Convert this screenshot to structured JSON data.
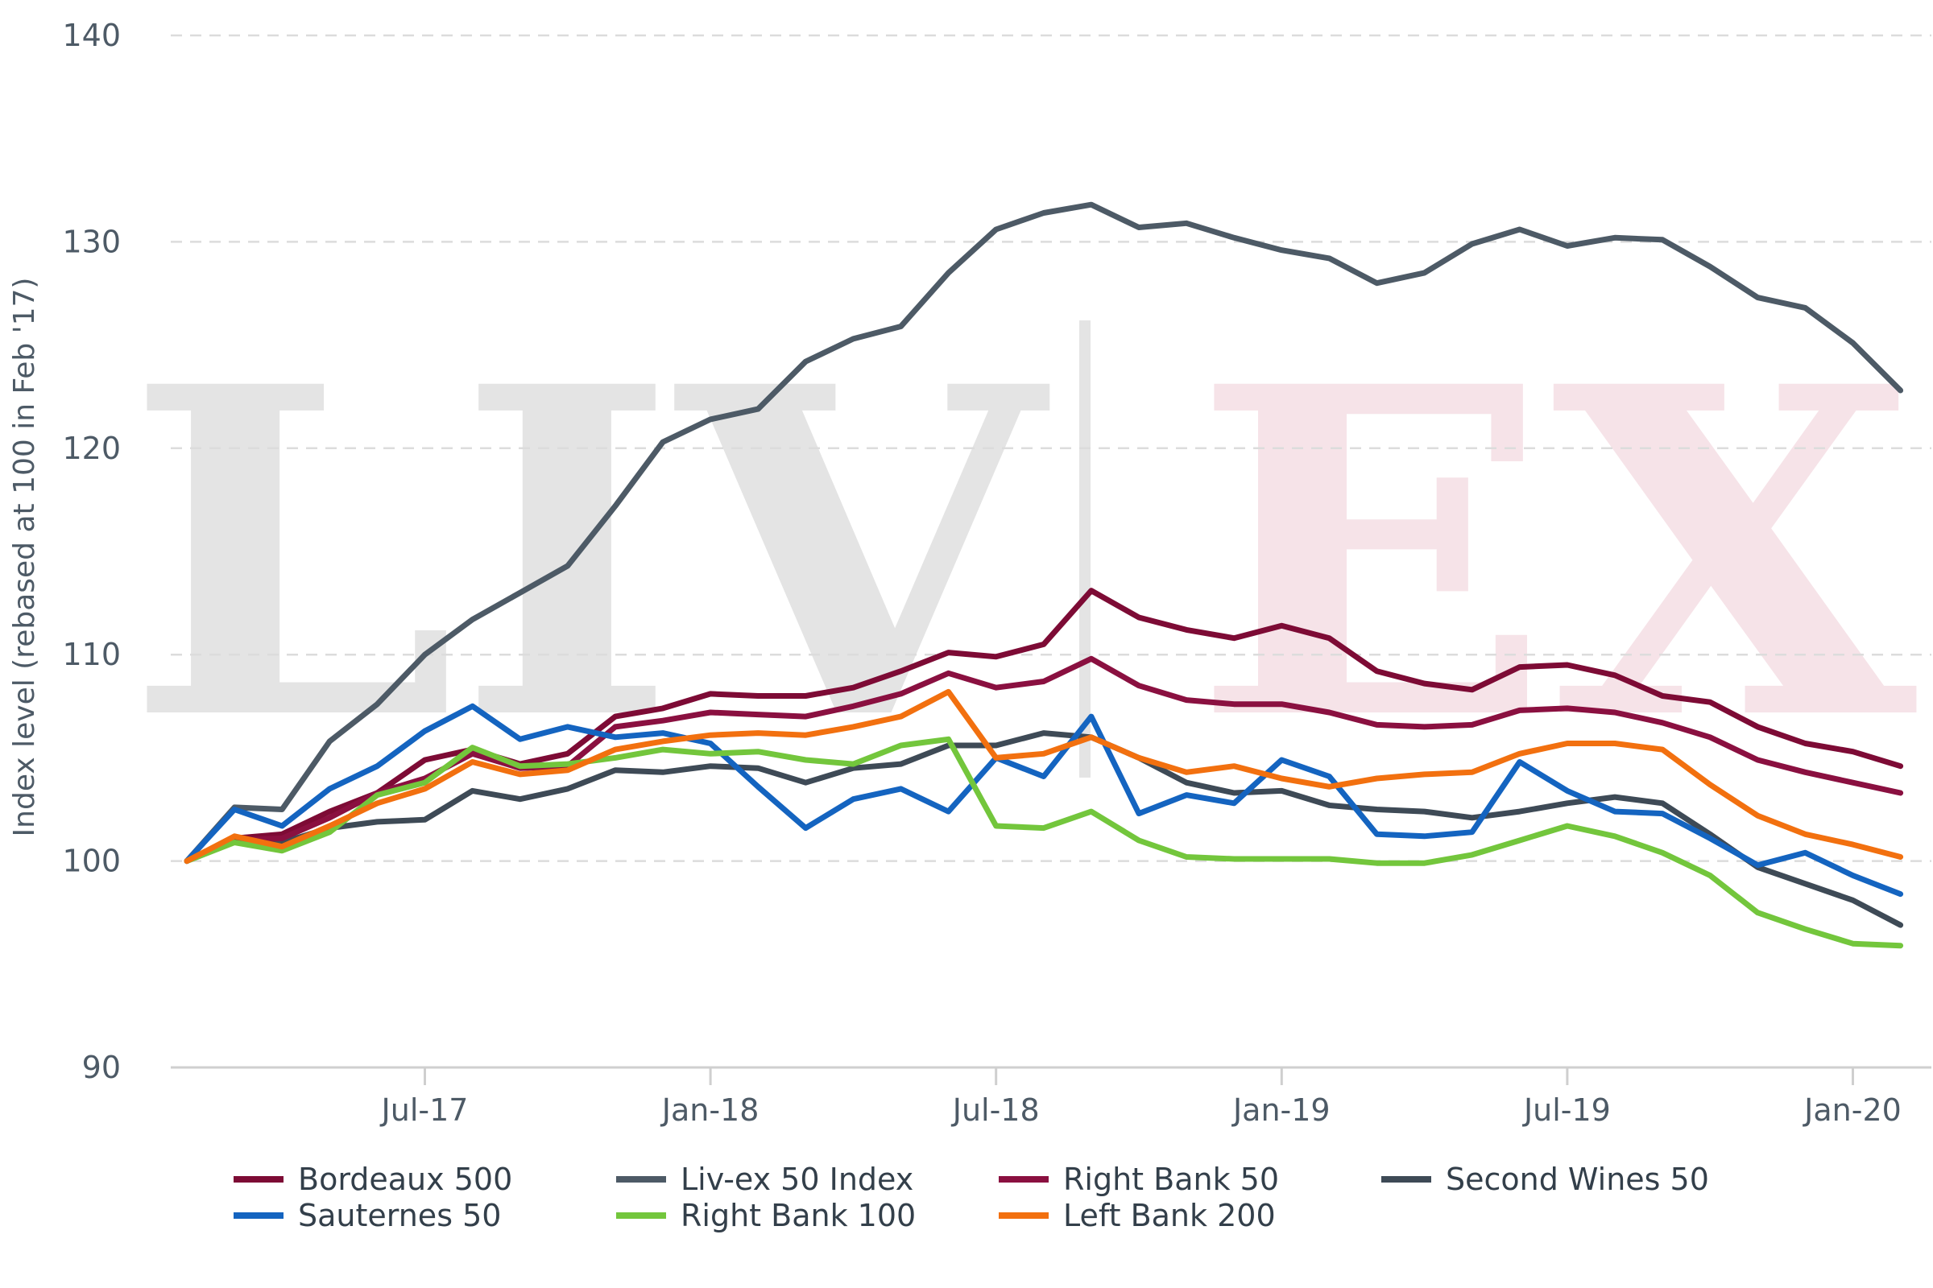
{
  "watermark": {
    "left": "LIV",
    "right": "EX"
  },
  "chart_data": {
    "type": "line",
    "title": "",
    "xlabel": "",
    "ylabel": "Index level (rebased at 100 in Feb '17)",
    "ylim": [
      90,
      140
    ],
    "yticks": [
      90,
      100,
      110,
      120,
      130,
      140
    ],
    "xlim": [
      0,
      36.9
    ],
    "xticks": [
      {
        "label": "Jul-17",
        "pos": 5
      },
      {
        "label": "Jan-18",
        "pos": 11
      },
      {
        "label": "Jul-18",
        "pos": 17
      },
      {
        "label": "Jan-19",
        "pos": 23
      },
      {
        "label": "Jul-19",
        "pos": 29
      },
      {
        "label": "Jan-20",
        "pos": 35
      }
    ],
    "x": [
      "Feb-17",
      "Mar-17",
      "Apr-17",
      "May-17",
      "Jun-17",
      "Jul-17",
      "Aug-17",
      "Sep-17",
      "Oct-17",
      "Nov-17",
      "Dec-17",
      "Jan-18",
      "Feb-18",
      "Mar-18",
      "Apr-18",
      "May-18",
      "Jun-18",
      "Jul-18",
      "Aug-18",
      "Sep-18",
      "Oct-18",
      "Nov-18",
      "Dec-18",
      "Jan-19",
      "Feb-19",
      "Mar-19",
      "Apr-19",
      "May-19",
      "Jun-19",
      "Jul-19",
      "Aug-19",
      "Sep-19",
      "Oct-19",
      "Nov-19",
      "Dec-19",
      "Jan-20",
      "Feb-20"
    ],
    "grid": "horizontal dashed",
    "legend_position": "bottom",
    "series": [
      {
        "name": "Bordeaux 500",
        "color": "#7d0b35",
        "values": [
          100,
          101.1,
          101.3,
          102.4,
          103.3,
          104.9,
          105.4,
          104.7,
          105.2,
          107.0,
          107.4,
          108.1,
          108.0,
          108.0,
          108.4,
          109.2,
          110.1,
          109.9,
          110.5,
          113.1,
          111.8,
          111.2,
          110.8,
          111.4,
          110.8,
          109.2,
          108.6,
          108.3,
          109.4,
          109.5,
          109.0,
          108.0,
          107.7,
          106.5,
          105.7,
          105.3,
          104.6
        ]
      },
      {
        "name": "Liv-ex 50 Index",
        "color": "#4d5a66",
        "values": [
          100,
          102.6,
          102.5,
          105.8,
          107.6,
          110.0,
          111.7,
          113.0,
          114.3,
          117.2,
          120.3,
          121.4,
          121.9,
          124.2,
          125.3,
          125.9,
          128.5,
          130.6,
          131.4,
          131.8,
          130.7,
          130.9,
          130.2,
          129.6,
          129.2,
          128.0,
          128.5,
          129.9,
          130.6,
          129.8,
          130.2,
          130.1,
          128.8,
          127.3,
          126.8,
          125.1,
          122.8
        ]
      },
      {
        "name": "Right Bank 50",
        "color": "#8a1040",
        "values": [
          100,
          101.0,
          101.1,
          102.1,
          103.3,
          104.0,
          105.2,
          104.5,
          104.6,
          106.5,
          106.8,
          107.2,
          107.1,
          107.0,
          107.5,
          108.1,
          109.1,
          108.4,
          108.7,
          109.8,
          108.5,
          107.8,
          107.6,
          107.6,
          107.2,
          106.6,
          106.5,
          106.6,
          107.3,
          107.4,
          107.2,
          106.7,
          106.0,
          104.9,
          104.3,
          103.8,
          103.3
        ]
      },
      {
        "name": "Second Wines 50",
        "color": "#3e4a56",
        "values": [
          100,
          101.0,
          100.9,
          101.6,
          101.9,
          102.0,
          103.4,
          103.0,
          103.5,
          104.4,
          104.3,
          104.6,
          104.5,
          103.8,
          104.5,
          104.7,
          105.6,
          105.6,
          106.2,
          106.0,
          105.0,
          103.8,
          103.3,
          103.4,
          102.7,
          102.5,
          102.4,
          102.1,
          102.4,
          102.8,
          103.1,
          102.8,
          101.3,
          99.7,
          98.9,
          98.1,
          96.9
        ]
      },
      {
        "name": "Sauternes 50",
        "color": "#1464c0",
        "values": [
          100,
          102.5,
          101.7,
          103.5,
          104.6,
          106.3,
          107.5,
          105.9,
          106.5,
          106.0,
          106.2,
          105.7,
          103.6,
          101.6,
          103.0,
          103.5,
          102.4,
          105.0,
          104.1,
          107.0,
          102.3,
          103.2,
          102.8,
          104.9,
          104.1,
          101.3,
          101.2,
          101.4,
          104.8,
          103.4,
          102.4,
          102.3,
          101.1,
          99.8,
          100.4,
          99.3,
          98.4
        ]
      },
      {
        "name": "Right Bank 100",
        "color": "#73c63c",
        "values": [
          100,
          100.9,
          100.5,
          101.4,
          103.2,
          103.8,
          105.5,
          104.6,
          104.7,
          105.0,
          105.4,
          105.2,
          105.3,
          104.9,
          104.7,
          105.6,
          105.9,
          101.7,
          101.6,
          102.4,
          101.0,
          100.2,
          100.1,
          100.1,
          100.1,
          99.9,
          99.9,
          100.3,
          101.0,
          101.7,
          101.2,
          100.4,
          99.3,
          97.5,
          96.7,
          96.0,
          95.9
        ]
      },
      {
        "name": "Left Bank 200",
        "color": "#f2700f",
        "values": [
          100,
          101.2,
          100.7,
          101.7,
          102.8,
          103.5,
          104.8,
          104.2,
          104.4,
          105.4,
          105.8,
          106.1,
          106.2,
          106.1,
          106.5,
          107.0,
          108.2,
          105.0,
          105.2,
          106.0,
          105.0,
          104.3,
          104.6,
          104.0,
          103.6,
          104.0,
          104.2,
          104.3,
          105.2,
          105.7,
          105.7,
          105.4,
          103.7,
          102.2,
          101.3,
          100.8,
          100.2
        ]
      }
    ]
  }
}
